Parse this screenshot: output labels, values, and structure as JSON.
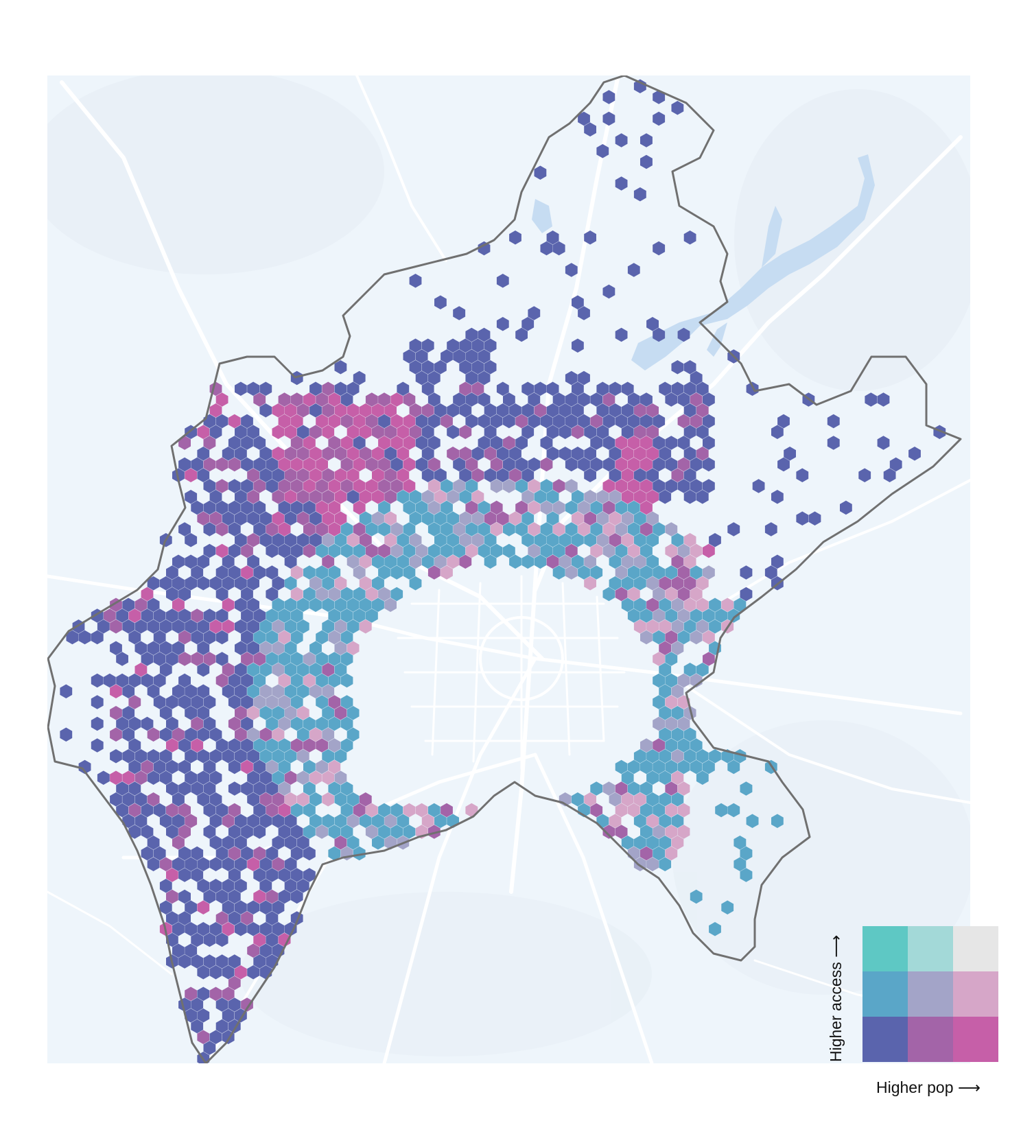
{
  "legend": {
    "x_label": "Higher pop ⟶",
    "y_label": "Higher access ⟶",
    "colors": [
      [
        "#5ec8c4",
        "#a3d9d8",
        "#e6e6e6"
      ],
      [
        "#5aa6c8",
        "#a3a4c8",
        "#d6a6c8"
      ],
      [
        "#5a64ad",
        "#a364a8",
        "#c65fa8"
      ]
    ]
  },
  "map": {
    "background": "#eef5fb",
    "boundary_color": "#707070",
    "road_color": "#ffffff",
    "water_color": "#c6dcf2"
  }
}
